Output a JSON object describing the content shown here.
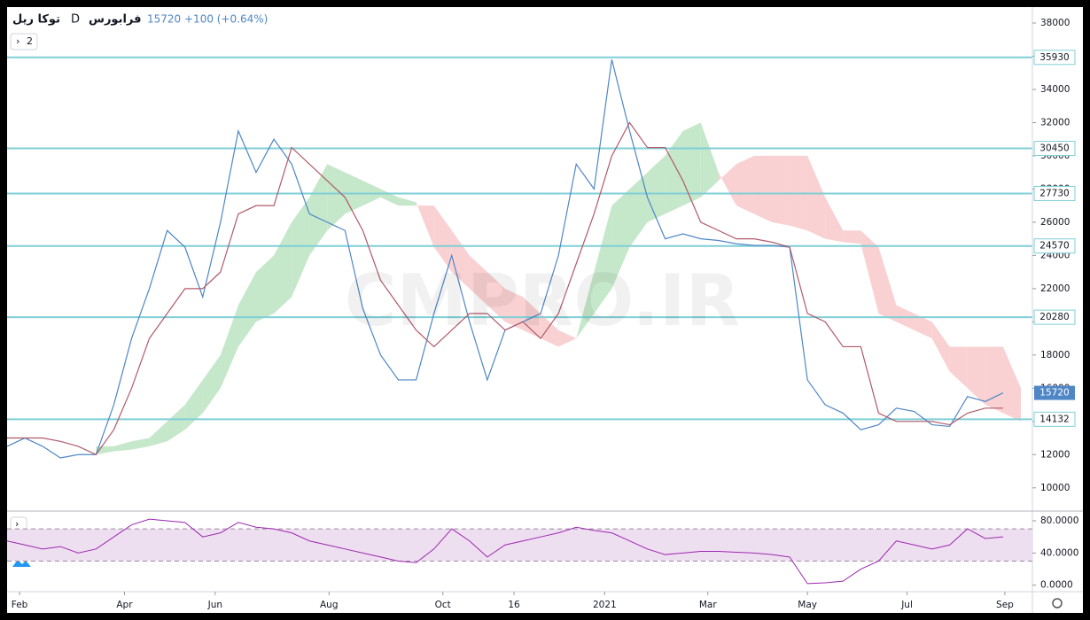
{
  "header": {
    "symbol": "توکا ریل",
    "interval": "D",
    "exchange": "فرابورس",
    "last": "15720",
    "change": "+100 (+0.64%)",
    "legend_count": "2"
  },
  "watermark": "CMPRO.IR",
  "chart_data": [
    {
      "type": "ichimoku",
      "xlim": [
        0,
        57
      ],
      "ylim": [
        8600,
        38960
      ],
      "yticks": [
        10000,
        12000,
        14000,
        16000,
        18000,
        20000,
        22000,
        24000,
        26000,
        28000,
        30000,
        32000,
        34000,
        36000,
        38000
      ],
      "xticks": [
        {
          "value": 0.7,
          "label": "Feb"
        },
        {
          "value": 6.6,
          "label": "Apr"
        },
        {
          "value": 11.7,
          "label": "Jun"
        },
        {
          "value": 18.1,
          "label": "Aug"
        },
        {
          "value": 24.5,
          "label": "Oct"
        },
        {
          "value": 28.5,
          "label": "16"
        },
        {
          "value": 33.6,
          "label": "2021"
        },
        {
          "value": 39.4,
          "label": "Mar"
        },
        {
          "value": 45,
          "label": "May"
        },
        {
          "value": 50.6,
          "label": "Jul"
        },
        {
          "value": 56.1,
          "label": "Sep"
        }
      ],
      "levels": [
        35930,
        30450,
        27730,
        24570,
        20280,
        14132
      ],
      "level_color": "#7fcfd6",
      "last_price": 15720,
      "series": [
        {
          "name": "price",
          "color": "#4f86c6",
          "values": [
            12500,
            13000,
            12500,
            11800,
            12000,
            12000,
            15000,
            19000,
            22000,
            25500,
            24500,
            21500,
            26000,
            31500,
            29000,
            31000,
            29500,
            26500,
            26000,
            25500,
            20800,
            18000,
            16500,
            16500,
            20500,
            24000,
            20000,
            16500,
            19500,
            20000,
            20500,
            24000,
            29500,
            28000,
            35800,
            31500,
            27500,
            25000,
            25300,
            25000,
            24900,
            24700,
            24600,
            24600,
            24500,
            16500,
            15000,
            14500,
            13500,
            13800,
            14800,
            14600,
            13800,
            13700,
            15500,
            15200,
            15720,
            null
          ]
        },
        {
          "name": "base",
          "color": "#b05a6a",
          "values": [
            13000,
            13000,
            13000,
            12800,
            12500,
            12000,
            13500,
            16000,
            19000,
            20500,
            22000,
            22000,
            23000,
            26500,
            27000,
            27000,
            30500,
            29500,
            28500,
            27500,
            25500,
            22500,
            21000,
            19500,
            18500,
            19500,
            20500,
            20500,
            19500,
            20000,
            19000,
            20500,
            23500,
            26500,
            30000,
            32000,
            30500,
            30500,
            28500,
            26000,
            25500,
            25000,
            25000,
            24800,
            24500,
            20500,
            20000,
            18500,
            18500,
            14500,
            14000,
            14000,
            14000,
            13800,
            14500,
            14800,
            14800,
            null
          ]
        }
      ],
      "cloud": {
        "up_color": "#b7e1bd",
        "down_color": "#f8c5c7",
        "span_a": [
          null,
          null,
          null,
          null,
          null,
          12500,
          12500,
          12800,
          13000,
          14000,
          15000,
          16500,
          18000,
          21000,
          23000,
          24000,
          26000,
          27500,
          29500,
          29000,
          28500,
          28000,
          27500,
          27200,
          24500,
          23000,
          22000,
          21000,
          20000,
          19500,
          19000,
          18500,
          19000,
          23000,
          27000,
          28000,
          29000,
          30000,
          31500,
          32000,
          29000,
          27000,
          26500,
          26000,
          25800,
          25500,
          25000,
          24800,
          24700,
          20500,
          20000,
          19500,
          19000,
          17000,
          16000,
          15000,
          14500,
          14000
        ],
        "span_b": [
          null,
          null,
          null,
          null,
          null,
          12000,
          12200,
          12300,
          12500,
          12800,
          13500,
          14500,
          16000,
          18500,
          20000,
          20500,
          21500,
          24000,
          25500,
          26500,
          27000,
          27500,
          27000,
          27000,
          27000,
          25500,
          24000,
          23000,
          22000,
          21500,
          20500,
          19500,
          19000,
          20500,
          22000,
          24500,
          26000,
          26500,
          27000,
          27500,
          28500,
          29500,
          30000,
          30000,
          30000,
          30000,
          27500,
          25500,
          25500,
          24500,
          21000,
          20500,
          20000,
          18500,
          18500,
          18500,
          18500,
          16000
        ]
      }
    },
    {
      "type": "rsi",
      "ylim": [
        -8,
        91
      ],
      "yticks": [
        {
          "value": 0,
          "label": "0.0000"
        },
        {
          "value": 40,
          "label": "40.0000"
        },
        {
          "value": 80,
          "label": "80.0000"
        }
      ],
      "bands": [
        30,
        70
      ],
      "band_color": "#eedff0",
      "series": [
        {
          "name": "rsi",
          "color": "#9c27b0",
          "values": [
            55,
            50,
            45,
            48,
            40,
            45,
            60,
            75,
            82,
            80,
            78,
            60,
            65,
            78,
            72,
            70,
            65,
            55,
            50,
            45,
            40,
            35,
            30,
            28,
            45,
            70,
            55,
            35,
            50,
            55,
            60,
            65,
            72,
            68,
            65,
            55,
            45,
            38,
            40,
            42,
            42,
            41,
            40,
            38,
            35,
            2,
            3,
            5,
            20,
            30,
            55,
            50,
            45,
            50,
            70,
            58,
            60,
            null
          ]
        }
      ]
    }
  ]
}
